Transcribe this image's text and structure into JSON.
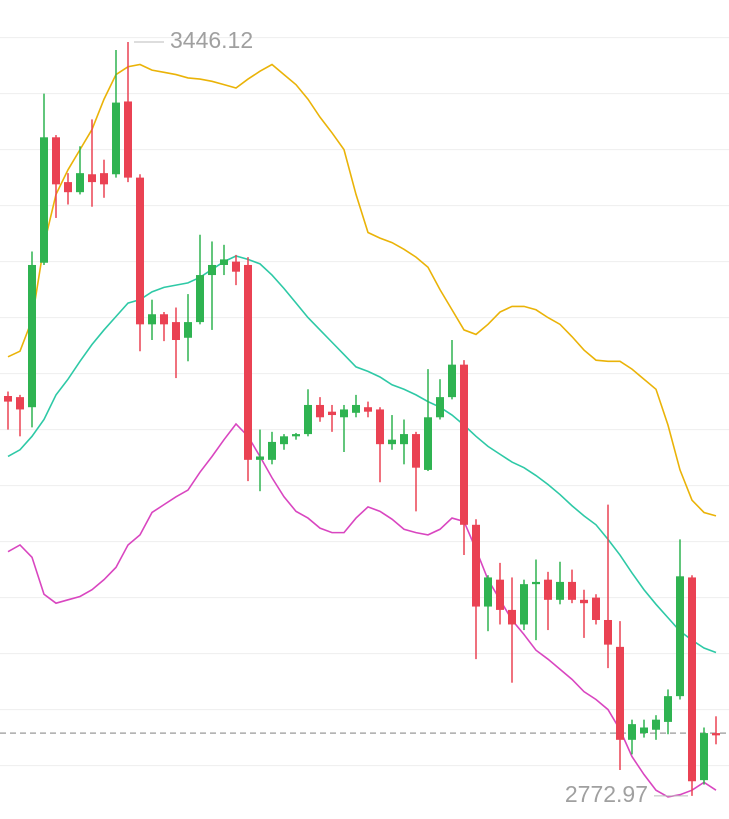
{
  "chart_data": {
    "type": "candlestick",
    "open": [
      3130,
      3129,
      3120,
      3249,
      3361,
      3321,
      3312,
      3328,
      3329,
      3328,
      3393,
      3325,
      3194,
      3203,
      3196,
      3182,
      3196,
      3238,
      3247,
      3250,
      3247,
      3073,
      3073,
      3087,
      3094,
      3096,
      3122,
      3116,
      3111,
      3115,
      3120,
      3118,
      3087,
      3087,
      3096,
      3064,
      3111,
      3129,
      3158,
      3015,
      2942,
      2966,
      2939,
      2926,
      2962,
      2966,
      2948,
      2964,
      2948,
      2950,
      2930,
      2906,
      2823,
      2829,
      2832,
      2839,
      2862,
      2968,
      2787,
      2829
    ],
    "high": [
      3134,
      3131,
      3259,
      3400,
      3363,
      3329,
      3353,
      3377,
      3341,
      3439,
      3446.12,
      3328,
      3216,
      3205,
      3209,
      3221,
      3274,
      3268,
      3265,
      3256,
      3254,
      3100,
      3098,
      3096,
      3097,
      3136,
      3129,
      3122,
      3122,
      3131,
      3125,
      3120,
      3113,
      3109,
      3098,
      3154,
      3145,
      3180,
      3162,
      3020,
      2970,
      2981,
      2968,
      2966,
      2984,
      2973,
      2982,
      2975,
      2957,
      2953,
      3033,
      2929,
      2841,
      2841,
      2845,
      2868,
      3002,
      2970,
      2834,
      2844
    ],
    "low": [
      3100,
      3094,
      3102,
      3247,
      3289,
      3301,
      3310,
      3299,
      3307,
      3325,
      3321,
      3170,
      3180,
      3179,
      3146,
      3161,
      3194,
      3189,
      3238,
      3229,
      3054,
      3045,
      3069,
      3082,
      3091,
      3094,
      3107,
      3098,
      3080,
      3111,
      3111,
      3053,
      3082,
      3069,
      3027,
      3063,
      3109,
      3127,
      2988,
      2895,
      2920,
      2926,
      2874,
      2921,
      2912,
      2921,
      2944,
      2945,
      2914,
      2926,
      2887,
      2796,
      2810,
      2825,
      2823,
      2828,
      2859,
      2772.97,
      2783,
      2819
    ],
    "close": [
      3125,
      3118,
      3247,
      3361,
      3319,
      3312,
      3329,
      3321,
      3319,
      3392,
      3325,
      3194,
      3203,
      3194,
      3180,
      3196,
      3238,
      3247,
      3252,
      3241,
      3073,
      3076,
      3089,
      3094,
      3096,
      3122,
      3111,
      3113,
      3118,
      3122,
      3116,
      3087,
      3091,
      3096,
      3066,
      3111,
      3129,
      3158,
      3015,
      2942,
      2968,
      2939,
      2926,
      2962,
      2964,
      2948,
      2964,
      2948,
      2945,
      2930,
      2908,
      2823,
      2837,
      2834,
      2841,
      2862,
      2969,
      2786,
      2829,
      2827
    ],
    "up_color": "#2fb351",
    "down_color": "#ea4253",
    "series": [
      {
        "color": "#eab308",
        "values": [
          3165,
          3170,
          3198,
          3265,
          3310,
          3332,
          3350,
          3368,
          3395,
          3417,
          3424,
          3426,
          3421,
          3419,
          3417,
          3414,
          3413,
          3411,
          3408,
          3405,
          3413,
          3420,
          3426,
          3417,
          3408,
          3395,
          3379,
          3365,
          3350,
          3310,
          3276,
          3271,
          3267,
          3261,
          3254,
          3245,
          3225,
          3207,
          3189,
          3185,
          3194,
          3205,
          3210,
          3210,
          3207,
          3200,
          3194,
          3183,
          3171,
          3162,
          3161,
          3161,
          3154,
          3145,
          3136,
          3104,
          3064,
          3037,
          3026,
          3023
        ]
      },
      {
        "color": "#2ec9a6",
        "values": [
          3076,
          3082,
          3094,
          3109,
          3131,
          3145,
          3161,
          3176,
          3189,
          3201,
          3213,
          3216,
          3223,
          3227,
          3229,
          3231,
          3236,
          3243,
          3250,
          3255,
          3252,
          3248,
          3238,
          3226,
          3213,
          3200,
          3189,
          3178,
          3167,
          3156,
          3152,
          3147,
          3140,
          3136,
          3131,
          3125,
          3120,
          3113,
          3104,
          3094,
          3085,
          3078,
          3071,
          3066,
          3059,
          3051,
          3042,
          3032,
          3023,
          3015,
          3002,
          2988,
          2972,
          2957,
          2944,
          2932,
          2920,
          2912,
          2905,
          2901
        ]
      },
      {
        "color": "#d946c0",
        "values": [
          2991,
          2997,
          2986,
          2953,
          2945,
          2948,
          2951,
          2957,
          2966,
          2977,
          2997,
          3006,
          3026,
          3033,
          3040,
          3046,
          3062,
          3076,
          3091,
          3105,
          3094,
          3076,
          3057,
          3040,
          3027,
          3021,
          3012,
          3008,
          3008,
          3021,
          3031,
          3027,
          3020,
          3011,
          3008,
          3006,
          3011,
          3021,
          3018,
          2993,
          2966,
          2948,
          2930,
          2917,
          2903,
          2895,
          2886,
          2877,
          2866,
          2859,
          2850,
          2832,
          2808,
          2792,
          2778,
          2772,
          2774,
          2778,
          2785,
          2778
        ]
      }
    ],
    "current_price": 2829,
    "annotations": [
      {
        "value": 3446.12,
        "label": "3446.12"
      },
      {
        "value": 2772.97,
        "label": "2772.97"
      }
    ],
    "ylim": [
      2752.3,
      3483.6
    ],
    "yticks": [
      2800,
      2850,
      2900,
      2950,
      3000,
      3050,
      3100,
      3150,
      3200,
      3250,
      3300,
      3350,
      3400,
      3450
    ],
    "grid": true
  }
}
